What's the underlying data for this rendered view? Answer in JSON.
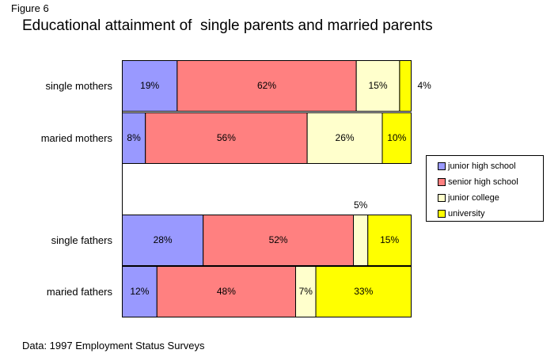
{
  "figure_label": "Figure 6",
  "source_note": "Data:  1997 Employment Status Surveys",
  "colors": {
    "junior high school": "#9999ff",
    "senior high school": "#ff8080",
    "junior college": "#ffffcc",
    "university": "#ffff00"
  },
  "chart_data": {
    "type": "bar",
    "orientation": "horizontal",
    "stacked": true,
    "percent_stacked": true,
    "title": "Educational attainment of  single parents and married parents",
    "xlabel": "",
    "ylabel": "",
    "xlim": [
      0,
      100
    ],
    "grid": false,
    "legend_position": "right",
    "categories": [
      "single mothers",
      "maried mothers",
      "",
      "single fathers",
      "maried fathers"
    ],
    "series": [
      {
        "name": "junior high school",
        "values": [
          19,
          8,
          null,
          28,
          12
        ],
        "labels": [
          "19%",
          "8%",
          "",
          "28%",
          "12%"
        ]
      },
      {
        "name": "senior high school",
        "values": [
          62,
          56,
          null,
          52,
          48
        ],
        "labels": [
          "62%",
          "56%",
          "",
          "52%",
          "48%"
        ]
      },
      {
        "name": "junior college",
        "values": [
          15,
          26,
          null,
          5,
          7
        ],
        "labels": [
          "15%",
          "26%",
          "",
          "5%",
          "7%"
        ]
      },
      {
        "name": "university",
        "values": [
          4,
          10,
          null,
          15,
          33
        ],
        "labels": [
          "4%",
          "10%",
          "",
          "15%",
          "33%"
        ]
      }
    ]
  }
}
